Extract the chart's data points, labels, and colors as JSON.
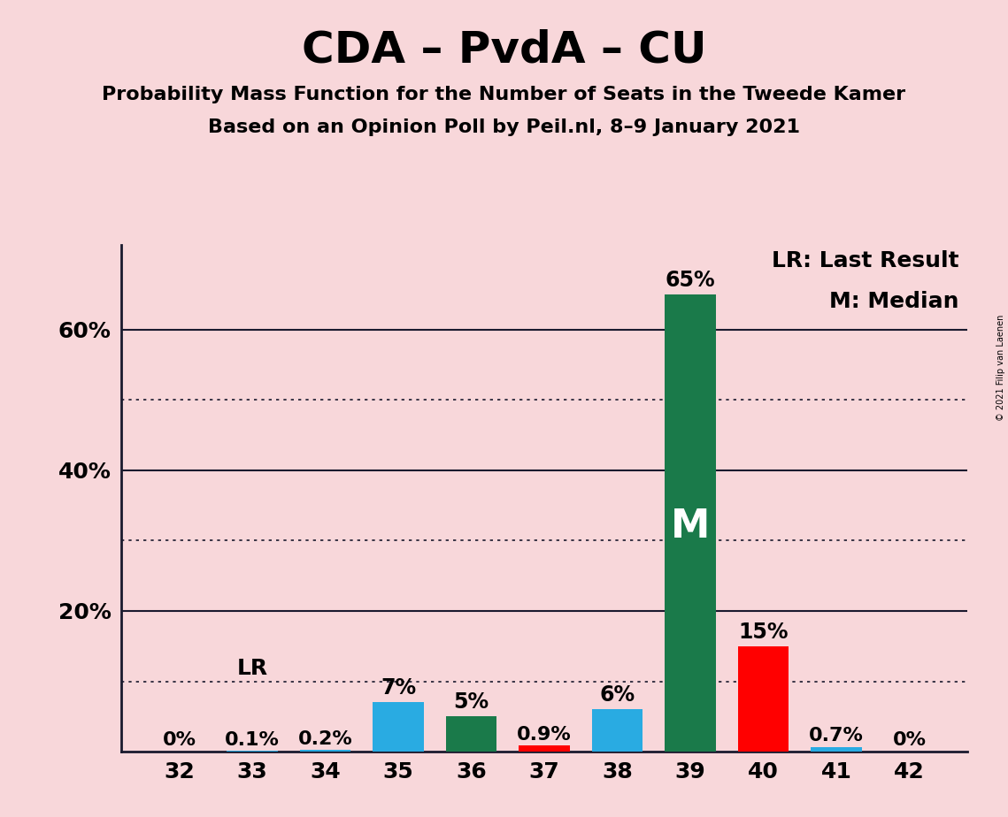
{
  "title": "CDA – PvdA – CU",
  "subtitle1": "Probability Mass Function for the Number of Seats in the Tweede Kamer",
  "subtitle2": "Based on an Opinion Poll by Peil.nl, 8–9 January 2021",
  "copyright": "© 2021 Filip van Laenen",
  "seats": [
    32,
    33,
    34,
    35,
    36,
    37,
    38,
    39,
    40,
    41,
    42
  ],
  "values": [
    0.0,
    0.1,
    0.2,
    7.0,
    5.0,
    0.9,
    6.0,
    65.0,
    15.0,
    0.7,
    0.0
  ],
  "label_values": [
    "0%",
    "0.1%",
    "0.2%",
    "7%",
    "5%",
    "0.9%",
    "6%",
    "65%",
    "15%",
    "0.7%",
    "0%"
  ],
  "bar_colors": [
    "#29ABE2",
    "#29ABE2",
    "#29ABE2",
    "#29ABE2",
    "#1A7A4A",
    "#FF0000",
    "#29ABE2",
    "#1A7A4A",
    "#FF0000",
    "#29ABE2",
    "#29ABE2"
  ],
  "lr_seat": 33,
  "median_seat": 39,
  "background_color": "#F8D7DA",
  "legend_text1": "LR: Last Result",
  "legend_text2": "M: Median",
  "solid_ytick_values": [
    0,
    20,
    40,
    60
  ],
  "dotted_ytick_values": [
    10,
    30,
    50
  ],
  "ylim": [
    0,
    72
  ],
  "title_fontsize": 36,
  "subtitle_fontsize": 16,
  "tick_fontsize": 18,
  "label_fontsize": 16,
  "legend_fontsize": 18
}
